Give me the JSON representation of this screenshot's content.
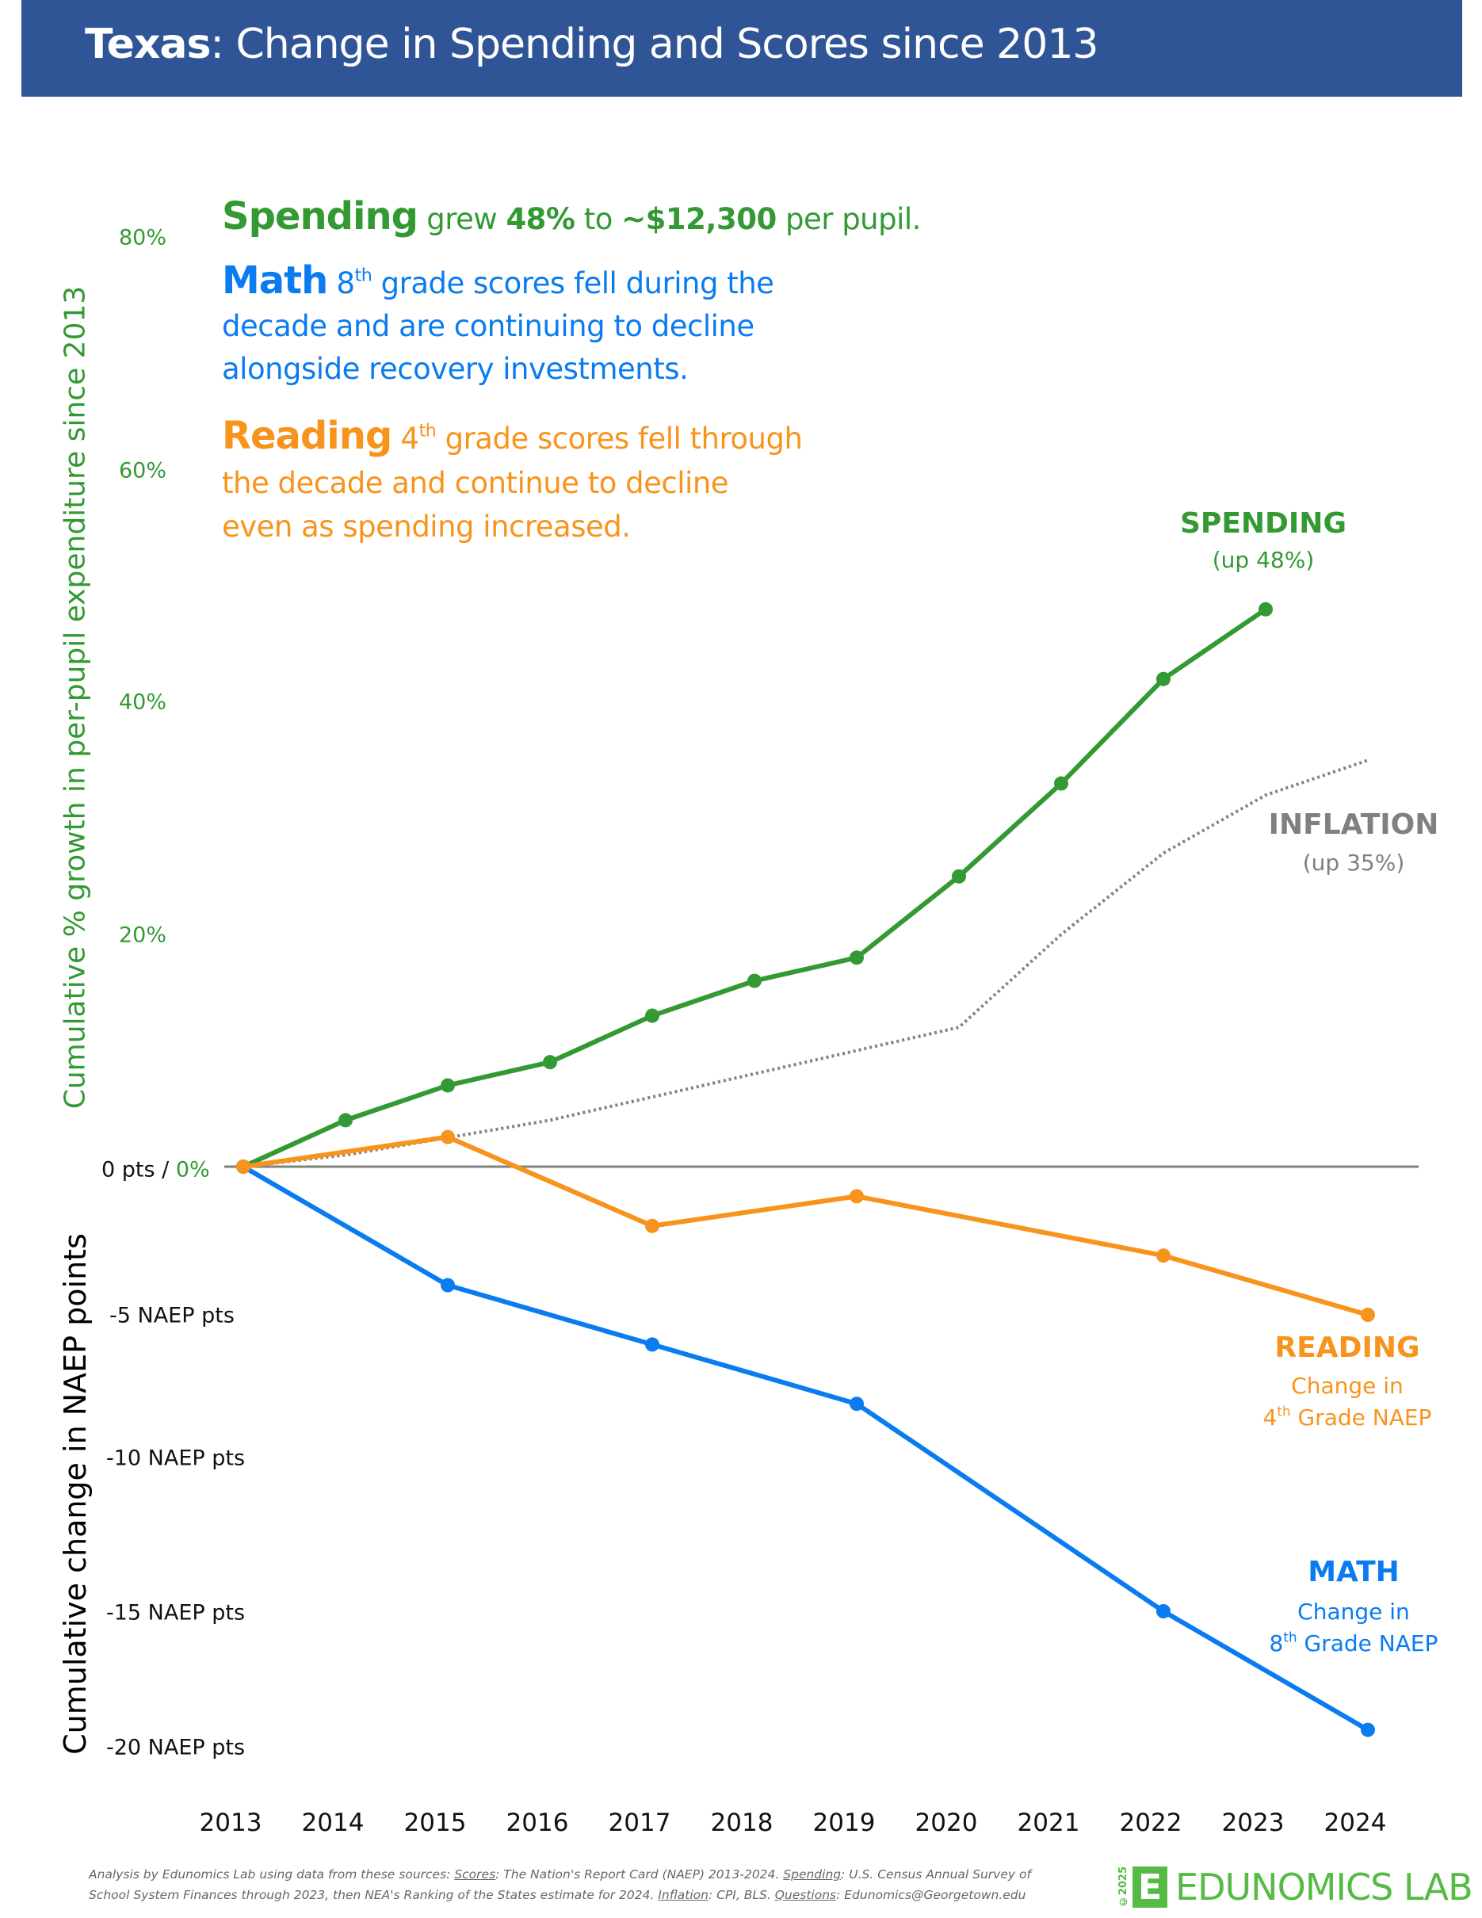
{
  "header": {
    "title_state": "Texas",
    "title_rest": ": Change in Spending and Scores since 2013"
  },
  "annotations": {
    "spending": {
      "head": "Spending",
      "text1": " grew ",
      "pct": "48%",
      "text2": " to ",
      "amount": "~$12,300",
      "text3": " per pupil."
    },
    "math": {
      "head": "Math",
      "grade": "8",
      "grade_sup": "th",
      "line1": " grade scores fell during the",
      "line2": "decade and are continuing to decline",
      "line3": "alongside recovery investments."
    },
    "reading": {
      "head": "Reading",
      "grade": "4",
      "grade_sup": "th",
      "line1": " grade scores fell through",
      "line2": "the decade and continue to decline",
      "line3": "even as spending increased."
    }
  },
  "series_labels": {
    "spending": {
      "title": "SPENDING",
      "sub": "(up 48%)"
    },
    "inflation": {
      "title": "INFLATION",
      "sub": "(up 35%)"
    },
    "reading": {
      "title": "READING",
      "sub1": "Change in",
      "sub2_num": "4",
      "sub2_sup": "th",
      "sub2_rest": " Grade NAEP"
    },
    "math": {
      "title": "MATH",
      "sub1": "Change in",
      "sub2_num": "8",
      "sub2_sup": "th",
      "sub2_rest": " Grade NAEP"
    }
  },
  "axes": {
    "left_top_label": "Cumulative % growth in per-pupil expenditure since 2013",
    "left_bottom_label": "Cumulative change in NAEP points",
    "zero_label_pts": "0 pts / ",
    "zero_label_pct": "0%"
  },
  "footer": {
    "p1": "Analysis by Edunomics Lab using data from these sources: ",
    "scores_label": "Scores",
    "scores_text": ": The Nation's Report Card (NAEP) 2013-2024. ",
    "spending_label": "Spending",
    "spending_text": ": U.S. Census Annual Survey of School System Finances through 2023, then NEA's Ranking of the States estimate for 2024. ",
    "inflation_label": "Inflation",
    "inflation_text": ": CPI, BLS. ",
    "questions_label": "Questions",
    "questions_text": ": Edunomics@Georgetown.edu"
  },
  "logo": {
    "copyright": "©2025",
    "mark": "E",
    "wordmark": "EDUNOMICS LAB"
  },
  "colors": {
    "title_bar": "#2F5597",
    "spending": "#339933",
    "math": "#0A7CF0",
    "reading": "#F7941D",
    "inflation": "#808080",
    "zero_line": "#808080",
    "logo": "#55BB44"
  },
  "chart_data": {
    "type": "line",
    "title": "Texas: Change in Spending and Scores since 2013",
    "x": [
      2013,
      2014,
      2015,
      2016,
      2017,
      2018,
      2019,
      2020,
      2021,
      2022,
      2023,
      2024
    ],
    "x_tick_labels": [
      "2013",
      "2014",
      "2015",
      "2016",
      "2017",
      "2018",
      "2019",
      "2020",
      "2021",
      "2022",
      "2023",
      "2024"
    ],
    "upper_axis": {
      "label": "Cumulative % growth in per-pupil expenditure since 2013",
      "unit": "%",
      "ylim": [
        0,
        80
      ],
      "ticks": [
        0,
        20,
        40,
        60,
        80
      ],
      "tick_labels": [
        "0%",
        "20%",
        "40%",
        "60%",
        "80%"
      ]
    },
    "lower_axis": {
      "label": "Cumulative change in NAEP points",
      "unit": "NAEP pts",
      "ylim": [
        -20,
        0
      ],
      "ticks": [
        0,
        -5,
        -10,
        -15,
        -20
      ],
      "tick_labels": [
        "0 pts",
        "-5 NAEP pts",
        "-10 NAEP pts",
        "-15 NAEP pts",
        "-20 NAEP pts"
      ]
    },
    "series": [
      {
        "name": "Spending",
        "axis": "upper",
        "style": "solid-markers",
        "x": [
          2013,
          2014,
          2015,
          2016,
          2017,
          2018,
          2019,
          2020,
          2021,
          2022,
          2023
        ],
        "values": [
          0,
          4,
          7,
          9,
          13,
          16,
          18,
          25,
          33,
          42,
          48
        ]
      },
      {
        "name": "Inflation",
        "axis": "upper",
        "style": "dotted",
        "x": [
          2013,
          2014,
          2015,
          2016,
          2017,
          2018,
          2019,
          2020,
          2021,
          2022,
          2023,
          2024
        ],
        "values": [
          0,
          1,
          2.5,
          4,
          6,
          8,
          10,
          12,
          20,
          27,
          32,
          35
        ]
      },
      {
        "name": "Reading (4th Grade NAEP)",
        "axis": "lower",
        "style": "solid-markers",
        "x": [
          2013,
          2015,
          2017,
          2019,
          2022,
          2024
        ],
        "values": [
          0,
          1,
          -2,
          -1,
          -3,
          -5
        ]
      },
      {
        "name": "Math (8th Grade NAEP)",
        "axis": "lower",
        "style": "solid-markers",
        "x": [
          2013,
          2015,
          2017,
          2019,
          2022,
          2024
        ],
        "values": [
          0,
          -4,
          -6,
          -8,
          -15,
          -19
        ]
      }
    ],
    "grid": false,
    "legend": "direct-labels-right"
  }
}
